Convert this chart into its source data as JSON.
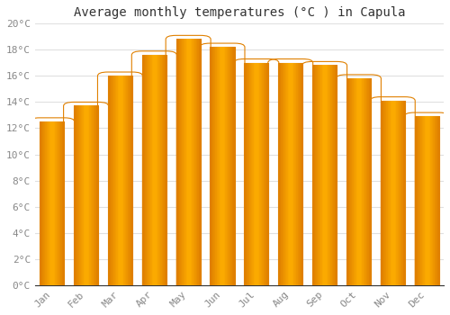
{
  "title": "Average monthly temperatures (°C ) in Capula",
  "months": [
    "Jan",
    "Feb",
    "Mar",
    "Apr",
    "May",
    "Jun",
    "Jul",
    "Aug",
    "Sep",
    "Oct",
    "Nov",
    "Dec"
  ],
  "values": [
    12.5,
    13.7,
    16.0,
    17.6,
    18.8,
    18.2,
    17.0,
    17.0,
    16.8,
    15.8,
    14.1,
    12.9
  ],
  "bar_face_color": "#FFB300",
  "bar_edge_color": "#E08000",
  "background_color": "#ffffff",
  "grid_color": "#e0e0e0",
  "ylim": [
    0,
    20
  ],
  "yticks": [
    0,
    2,
    4,
    6,
    8,
    10,
    12,
    14,
    16,
    18,
    20
  ],
  "title_fontsize": 10,
  "tick_fontsize": 8,
  "tick_label_color": "#888888",
  "title_color": "#333333"
}
